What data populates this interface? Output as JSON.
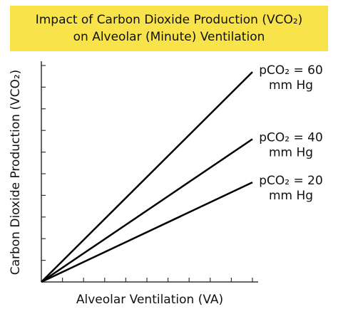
{
  "chart_data": {
    "type": "line",
    "title": "Impact of Carbon Dioxide Production (VCO₂) on Alveolar (Minute) Ventilation",
    "x_label": "Alveolar Ventilation (VA)",
    "y_label": "Carbon Dioxide Production (VCO₂)",
    "x": [
      0,
      10
    ],
    "series": [
      {
        "name": "pCO₂ = 60 mm Hg",
        "color": "#000000",
        "values": [
          0,
          9.7
        ]
      },
      {
        "name": "pCO₂ = 40 mm Hg",
        "color": "#000000",
        "values": [
          0,
          6.6
        ]
      },
      {
        "name": "pCO₂ = 20 mm Hg",
        "color": "#000000",
        "values": [
          0,
          4.6
        ]
      }
    ],
    "xlim": [
      0,
      10
    ],
    "ylim": [
      0,
      10
    ],
    "xticks": [
      1,
      2,
      3,
      4,
      5,
      6,
      7,
      8,
      9,
      10
    ],
    "yticks": [
      1,
      2,
      3,
      4,
      5,
      6,
      7,
      8,
      9,
      10
    ],
    "title_background": "#f8e44a"
  }
}
